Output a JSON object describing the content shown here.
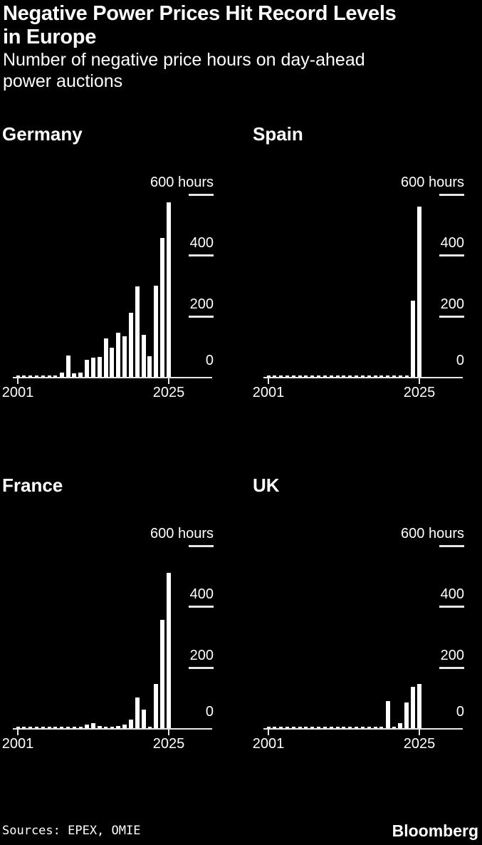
{
  "header": {
    "title_line1": "Negative Power Prices Hit Record Levels",
    "title_line2": "in Europe",
    "subtitle_line1": "Number of negative price hours on day-ahead",
    "subtitle_line2": "power auctions"
  },
  "footer": {
    "sources": "Sources: EPEX, OMIE",
    "brand": "Bloomberg"
  },
  "colors": {
    "background": "#000000",
    "text": "#ffffff",
    "bar": "#ffffff",
    "axis": "#e6e6e6"
  },
  "chart_data": [
    {
      "type": "bar",
      "title": "Germany",
      "years": [
        2001,
        2002,
        2003,
        2004,
        2005,
        2006,
        2007,
        2008,
        2009,
        2010,
        2011,
        2012,
        2013,
        2014,
        2015,
        2016,
        2017,
        2018,
        2019,
        2020,
        2021,
        2022,
        2023,
        2024,
        2025
      ],
      "values": [
        0,
        0,
        0,
        0,
        0,
        0,
        0,
        15,
        71,
        12,
        15,
        56,
        63,
        65,
        127,
        96,
        146,
        134,
        210,
        298,
        138,
        69,
        300,
        458,
        574
      ],
      "ylabel": "hours",
      "ylim": [
        0,
        600
      ],
      "yticks": [
        0,
        200,
        400,
        600
      ],
      "ytick_labels": [
        "0",
        "200",
        "400",
        "600 hours"
      ],
      "xtick_labels": [
        "2001",
        "2025"
      ],
      "grid": false,
      "legend": "none"
    },
    {
      "type": "bar",
      "title": "Spain",
      "years": [
        2001,
        2002,
        2003,
        2004,
        2005,
        2006,
        2007,
        2008,
        2009,
        2010,
        2011,
        2012,
        2013,
        2014,
        2015,
        2016,
        2017,
        2018,
        2019,
        2020,
        2021,
        2022,
        2023,
        2024,
        2025
      ],
      "values": [
        0,
        0,
        0,
        0,
        0,
        0,
        0,
        0,
        0,
        0,
        0,
        0,
        0,
        0,
        0,
        0,
        0,
        0,
        0,
        0,
        0,
        0,
        0,
        250,
        560
      ],
      "ylabel": "hours",
      "ylim": [
        0,
        600
      ],
      "yticks": [
        0,
        200,
        400,
        600
      ],
      "ytick_labels": [
        "0",
        "200",
        "400",
        "600 hours"
      ],
      "xtick_labels": [
        "2001",
        "2025"
      ],
      "grid": false,
      "legend": "none"
    },
    {
      "type": "bar",
      "title": "France",
      "years": [
        2001,
        2002,
        2003,
        2004,
        2005,
        2006,
        2007,
        2008,
        2009,
        2010,
        2011,
        2012,
        2013,
        2014,
        2015,
        2016,
        2017,
        2018,
        2019,
        2020,
        2021,
        2022,
        2023,
        2024,
        2025
      ],
      "values": [
        0,
        0,
        0,
        0,
        0,
        0,
        0,
        0,
        0,
        0,
        0,
        11,
        17,
        8,
        4,
        2,
        6,
        11,
        27,
        100,
        61,
        5,
        146,
        357,
        510
      ],
      "ylabel": "hours",
      "ylim": [
        0,
        600
      ],
      "yticks": [
        0,
        200,
        400,
        600
      ],
      "ytick_labels": [
        "0",
        "200",
        "400",
        "600 hours"
      ],
      "xtick_labels": [
        "2001",
        "2025"
      ],
      "grid": false,
      "legend": "none"
    },
    {
      "type": "bar",
      "title": "UK",
      "years": [
        2001,
        2002,
        2003,
        2004,
        2005,
        2006,
        2007,
        2008,
        2009,
        2010,
        2011,
        2012,
        2013,
        2014,
        2015,
        2016,
        2017,
        2018,
        2019,
        2020,
        2021,
        2022,
        2023,
        2024,
        2025
      ],
      "values": [
        0,
        0,
        0,
        0,
        0,
        0,
        0,
        0,
        0,
        0,
        0,
        0,
        0,
        0,
        0,
        0,
        0,
        0,
        0,
        88,
        4,
        17,
        85,
        137,
        146
      ],
      "ylabel": "hours",
      "ylim": [
        0,
        600
      ],
      "yticks": [
        0,
        200,
        400,
        600
      ],
      "ytick_labels": [
        "0",
        "200",
        "400",
        "600 hours"
      ],
      "xtick_labels": [
        "2001",
        "2025"
      ],
      "grid": false,
      "legend": "none"
    }
  ]
}
